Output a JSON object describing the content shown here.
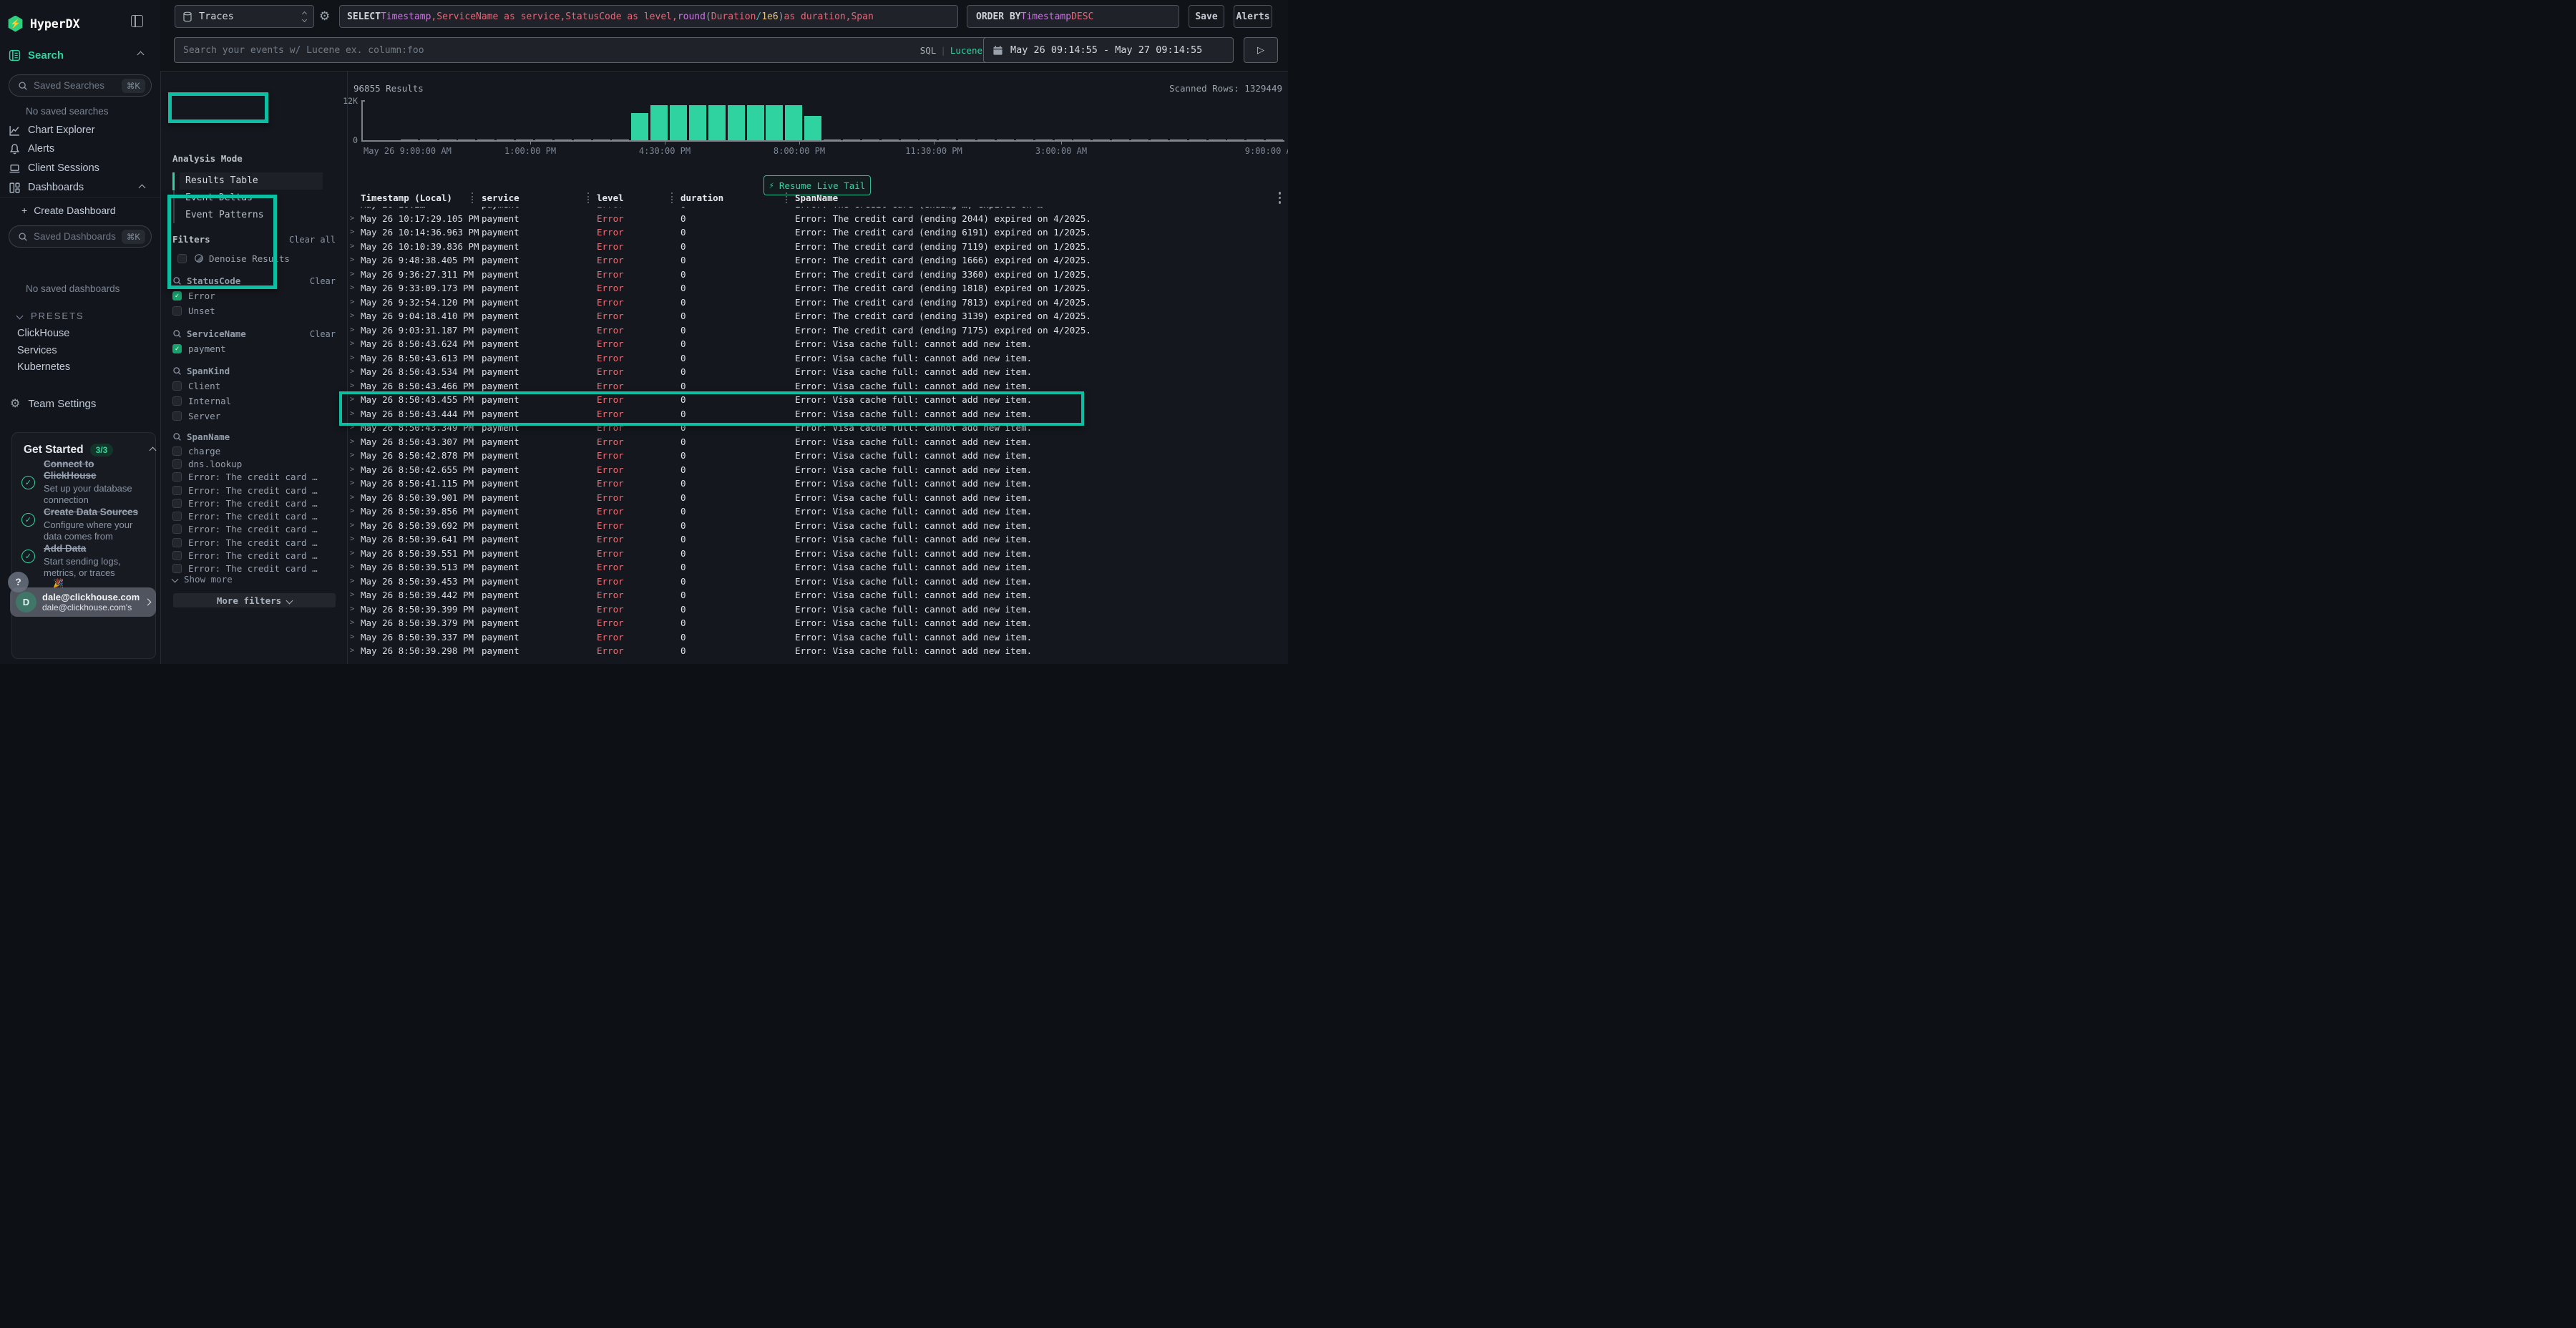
{
  "app": {
    "brand": "HyperDX"
  },
  "topbar": {
    "source_select": "Traces",
    "query_tokens": [
      {
        "text": "SELECT ",
        "type": "kw"
      },
      {
        "text": "Timestamp",
        "type": "fld"
      },
      {
        "text": ", ",
        "type": "red"
      },
      {
        "text": "ServiceName as service",
        "type": "red"
      },
      {
        "text": ", ",
        "type": "red"
      },
      {
        "text": "StatusCode as level",
        "type": "red"
      },
      {
        "text": ", ",
        "type": "red"
      },
      {
        "text": "round",
        "type": "fld"
      },
      {
        "text": "(",
        "type": "pln"
      },
      {
        "text": "Duration ",
        "type": "red"
      },
      {
        "text": "/ ",
        "type": "op"
      },
      {
        "text": "1e6",
        "type": "num"
      },
      {
        "text": ") ",
        "type": "pln"
      },
      {
        "text": "as duration",
        "type": "red"
      },
      {
        "text": ", ",
        "type": "red"
      },
      {
        "text": "Span",
        "type": "red"
      }
    ],
    "order_by_tokens": [
      {
        "text": "ORDER BY ",
        "type": "kw"
      },
      {
        "text": "Timestamp ",
        "type": "fld"
      },
      {
        "text": "DESC",
        "type": "red"
      }
    ],
    "save_label": "Save",
    "alerts_label": "Alerts",
    "search_placeholder": "Search your events w/ Lucene ex. column:foo",
    "mode_sql": "SQL",
    "mode_divider": "|",
    "mode_lucene": "Lucene",
    "date_range": "May 26 09:14:55 - May 27 09:14:55",
    "run_icon": "▷"
  },
  "sidebar": {
    "nav_search_label": "Search",
    "saved_searches_placeholder": "Saved Searches",
    "shortcut": "⌘K",
    "no_saved_searches": "No saved searches",
    "items": [
      "Chart Explorer",
      "Alerts",
      "Client Sessions",
      "Dashboards"
    ],
    "create_dashboard": "Create Dashboard",
    "saved_dashboards_placeholder": "Saved Dashboards",
    "no_saved_dashboards": "No saved dashboards",
    "presets_label": "PRESETS",
    "presets": [
      "ClickHouse",
      "Services",
      "Kubernetes"
    ],
    "team_settings": "Team Settings",
    "get_started": {
      "title": "Get Started",
      "badge": "3/3",
      "items": [
        {
          "title": "Connect to ClickHouse",
          "subtitle": "Set up your database connection"
        },
        {
          "title": "Create Data Sources",
          "subtitle": "Configure where your data comes from"
        },
        {
          "title": "Add Data",
          "subtitle": "Start sending logs, metrics, or traces"
        }
      ]
    },
    "help_label": "?",
    "user": {
      "initial": "D",
      "name": "dale@clickhouse.com",
      "org": "dale@clickhouse.com's"
    }
  },
  "analysis": {
    "title": "Analysis Mode",
    "modes": [
      "Results Table",
      "Event Deltas",
      "Event Patterns"
    ],
    "active": "Results Table"
  },
  "filters": {
    "title": "Filters",
    "clear_all": "Clear all",
    "denoise": "Denoise Results",
    "groups": [
      {
        "name": "StatusCode",
        "clear": "Clear",
        "options": [
          {
            "label": "Error",
            "checked": true
          },
          {
            "label": "Unset",
            "checked": false
          }
        ]
      },
      {
        "name": "ServiceName",
        "clear": "Clear",
        "options": [
          {
            "label": "payment",
            "checked": true
          }
        ]
      },
      {
        "name": "SpanKind",
        "clear": "",
        "options": [
          {
            "label": "Client",
            "checked": false
          },
          {
            "label": "Internal",
            "checked": false
          },
          {
            "label": "Server",
            "checked": false
          }
        ]
      },
      {
        "name": "SpanName",
        "clear": "",
        "options": [
          {
            "label": "charge",
            "checked": false
          },
          {
            "label": "dns.lookup",
            "checked": false
          },
          {
            "label": "Error: The credit card …",
            "checked": false
          },
          {
            "label": "Error: The credit card …",
            "checked": false
          },
          {
            "label": "Error: The credit card …",
            "checked": false
          },
          {
            "label": "Error: The credit card …",
            "checked": false
          },
          {
            "label": "Error: The credit card …",
            "checked": false
          },
          {
            "label": "Error: The credit card …",
            "checked": false
          },
          {
            "label": "Error: The credit card …",
            "checked": false
          },
          {
            "label": "Error: The credit card …",
            "checked": false
          }
        ]
      }
    ],
    "show_more": "Show more",
    "more_filters": "More filters"
  },
  "results": {
    "count_label": "96855 Results",
    "scanned_label": "Scanned Rows: 1329449",
    "resume_live_tail": "Resume Live Tail",
    "bolt": "⚡"
  },
  "chart_data": {
    "type": "bar",
    "title": "96855 Results",
    "ylim": [
      0,
      12000
    ],
    "y_tick_labels": [
      "12K",
      "0"
    ],
    "x_tick_labels": [
      "May 26 9:00:00 AM",
      "1:00:00 PM",
      "4:30:00 PM",
      "8:00:00 PM",
      "11:30:00 PM",
      "3:00:00 AM",
      "9:00:00 AM"
    ],
    "bucket_minutes": 30,
    "legend": "none",
    "grid": false,
    "bar_color": "#2ed3a0",
    "values": [
      0,
      0,
      120,
      120,
      120,
      120,
      120,
      120,
      120,
      120,
      120,
      120,
      120,
      120,
      8100,
      10400,
      10400,
      10400,
      10400,
      10400,
      10400,
      10400,
      10400,
      7200,
      120,
      120,
      120,
      120,
      120,
      120,
      120,
      120,
      120,
      120,
      120,
      120,
      120,
      120,
      120,
      120,
      120,
      120,
      120,
      120,
      120,
      120,
      120,
      120
    ]
  },
  "table": {
    "columns": [
      "Timestamp (Local)",
      "service",
      "level",
      "duration",
      "SpanName"
    ],
    "rows": [
      {
        "timestamp": "May 26 10:2…",
        "service": "payment",
        "level": "Error",
        "duration": "0",
        "span_name": "Error: The credit card (ending …) expired on …",
        "partial": true,
        "highlighted": false
      },
      {
        "timestamp": "May 26 10:17:29.105 PM",
        "service": "payment",
        "level": "Error",
        "duration": "0",
        "span_name": "Error: The credit card (ending 2044) expired on 4/2025.",
        "partial": false,
        "highlighted": false
      },
      {
        "timestamp": "May 26 10:14:36.963 PM",
        "service": "payment",
        "level": "Error",
        "duration": "0",
        "span_name": "Error: The credit card (ending 6191) expired on 1/2025.",
        "partial": false,
        "highlighted": false
      },
      {
        "timestamp": "May 26 10:10:39.836 PM",
        "service": "payment",
        "level": "Error",
        "duration": "0",
        "span_name": "Error: The credit card (ending 7119) expired on 1/2025.",
        "partial": false,
        "highlighted": false
      },
      {
        "timestamp": "May 26 9:48:38.405 PM",
        "service": "payment",
        "level": "Error",
        "duration": "0",
        "span_name": "Error: The credit card (ending 1666) expired on 4/2025.",
        "partial": false,
        "highlighted": false
      },
      {
        "timestamp": "May 26 9:36:27.311 PM",
        "service": "payment",
        "level": "Error",
        "duration": "0",
        "span_name": "Error: The credit card (ending 3360) expired on 1/2025.",
        "partial": false,
        "highlighted": false
      },
      {
        "timestamp": "May 26 9:33:09.173 PM",
        "service": "payment",
        "level": "Error",
        "duration": "0",
        "span_name": "Error: The credit card (ending 1818) expired on 1/2025.",
        "partial": false,
        "highlighted": false
      },
      {
        "timestamp": "May 26 9:32:54.120 PM",
        "service": "payment",
        "level": "Error",
        "duration": "0",
        "span_name": "Error: The credit card (ending 7813) expired on 4/2025.",
        "partial": false,
        "highlighted": false
      },
      {
        "timestamp": "May 26 9:04:18.410 PM",
        "service": "payment",
        "level": "Error",
        "duration": "0",
        "span_name": "Error: The credit card (ending 3139) expired on 4/2025.",
        "partial": false,
        "highlighted": false
      },
      {
        "timestamp": "May 26 9:03:31.187 PM",
        "service": "payment",
        "level": "Error",
        "duration": "0",
        "span_name": "Error: The credit card (ending 7175) expired on 4/2025.",
        "partial": false,
        "highlighted": true
      },
      {
        "timestamp": "May 26 8:50:43.624 PM",
        "service": "payment",
        "level": "Error",
        "duration": "0",
        "span_name": "Error: Visa cache full: cannot add new item.",
        "partial": false,
        "highlighted": true
      },
      {
        "timestamp": "May 26 8:50:43.613 PM",
        "service": "payment",
        "level": "Error",
        "duration": "0",
        "span_name": "Error: Visa cache full: cannot add new item.",
        "partial": false,
        "highlighted": false
      },
      {
        "timestamp": "May 26 8:50:43.534 PM",
        "service": "payment",
        "level": "Error",
        "duration": "0",
        "span_name": "Error: Visa cache full: cannot add new item.",
        "partial": false,
        "highlighted": false
      },
      {
        "timestamp": "May 26 8:50:43.466 PM",
        "service": "payment",
        "level": "Error",
        "duration": "0",
        "span_name": "Error: Visa cache full: cannot add new item.",
        "partial": false,
        "highlighted": false
      },
      {
        "timestamp": "May 26 8:50:43.455 PM",
        "service": "payment",
        "level": "Error",
        "duration": "0",
        "span_name": "Error: Visa cache full: cannot add new item.",
        "partial": false,
        "highlighted": false
      },
      {
        "timestamp": "May 26 8:50:43.444 PM",
        "service": "payment",
        "level": "Error",
        "duration": "0",
        "span_name": "Error: Visa cache full: cannot add new item.",
        "partial": false,
        "highlighted": false
      },
      {
        "timestamp": "May 26 8:50:43.349 PM",
        "service": "payment",
        "level": "Error",
        "duration": "0",
        "span_name": "Error: Visa cache full: cannot add new item.",
        "partial": false,
        "highlighted": false
      },
      {
        "timestamp": "May 26 8:50:43.307 PM",
        "service": "payment",
        "level": "Error",
        "duration": "0",
        "span_name": "Error: Visa cache full: cannot add new item.",
        "partial": false,
        "highlighted": false
      },
      {
        "timestamp": "May 26 8:50:42.878 PM",
        "service": "payment",
        "level": "Error",
        "duration": "0",
        "span_name": "Error: Visa cache full: cannot add new item.",
        "partial": false,
        "highlighted": false
      },
      {
        "timestamp": "May 26 8:50:42.655 PM",
        "service": "payment",
        "level": "Error",
        "duration": "0",
        "span_name": "Error: Visa cache full: cannot add new item.",
        "partial": false,
        "highlighted": false
      },
      {
        "timestamp": "May 26 8:50:41.115 PM",
        "service": "payment",
        "level": "Error",
        "duration": "0",
        "span_name": "Error: Visa cache full: cannot add new item.",
        "partial": false,
        "highlighted": false
      },
      {
        "timestamp": "May 26 8:50:39.901 PM",
        "service": "payment",
        "level": "Error",
        "duration": "0",
        "span_name": "Error: Visa cache full: cannot add new item.",
        "partial": false,
        "highlighted": false
      },
      {
        "timestamp": "May 26 8:50:39.856 PM",
        "service": "payment",
        "level": "Error",
        "duration": "0",
        "span_name": "Error: Visa cache full: cannot add new item.",
        "partial": false,
        "highlighted": false
      },
      {
        "timestamp": "May 26 8:50:39.692 PM",
        "service": "payment",
        "level": "Error",
        "duration": "0",
        "span_name": "Error: Visa cache full: cannot add new item.",
        "partial": false,
        "highlighted": false
      },
      {
        "timestamp": "May 26 8:50:39.641 PM",
        "service": "payment",
        "level": "Error",
        "duration": "0",
        "span_name": "Error: Visa cache full: cannot add new item.",
        "partial": false,
        "highlighted": false
      },
      {
        "timestamp": "May 26 8:50:39.551 PM",
        "service": "payment",
        "level": "Error",
        "duration": "0",
        "span_name": "Error: Visa cache full: cannot add new item.",
        "partial": false,
        "highlighted": false
      },
      {
        "timestamp": "May 26 8:50:39.513 PM",
        "service": "payment",
        "level": "Error",
        "duration": "0",
        "span_name": "Error: Visa cache full: cannot add new item.",
        "partial": false,
        "highlighted": false
      },
      {
        "timestamp": "May 26 8:50:39.453 PM",
        "service": "payment",
        "level": "Error",
        "duration": "0",
        "span_name": "Error: Visa cache full: cannot add new item.",
        "partial": false,
        "highlighted": false
      },
      {
        "timestamp": "May 26 8:50:39.442 PM",
        "service": "payment",
        "level": "Error",
        "duration": "0",
        "span_name": "Error: Visa cache full: cannot add new item.",
        "partial": false,
        "highlighted": false
      },
      {
        "timestamp": "May 26 8:50:39.399 PM",
        "service": "payment",
        "level": "Error",
        "duration": "0",
        "span_name": "Error: Visa cache full: cannot add new item.",
        "partial": false,
        "highlighted": false
      },
      {
        "timestamp": "May 26 8:50:39.379 PM",
        "service": "payment",
        "level": "Error",
        "duration": "0",
        "span_name": "Error: Visa cache full: cannot add new item.",
        "partial": false,
        "highlighted": false
      },
      {
        "timestamp": "May 26 8:50:39.337 PM",
        "service": "payment",
        "level": "Error",
        "duration": "0",
        "span_name": "Error: Visa cache full: cannot add new item.",
        "partial": false,
        "highlighted": false
      },
      {
        "timestamp": "May 26 8:50:39.298 PM",
        "service": "payment",
        "level": "Error",
        "duration": "0",
        "span_name": "Error: Visa cache full: cannot add new item.",
        "partial": false,
        "highlighted": false
      }
    ]
  },
  "annotations": {
    "highlight_color": "#0dbfa2"
  }
}
